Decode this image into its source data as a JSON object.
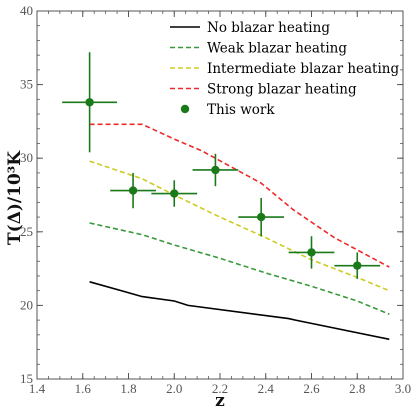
{
  "chart_data": {
    "type": "line",
    "xlabel": "z",
    "ylabel": "T(Δ)/10³K",
    "xlim": [
      1.4,
      3.0
    ],
    "ylim": [
      15,
      40
    ],
    "x_ticks": [
      "1.4",
      "1.6",
      "1.8",
      "2.0",
      "2.2",
      "2.4",
      "2.6",
      "2.8",
      "3.0"
    ],
    "y_ticks": [
      "15",
      "20",
      "25",
      "30",
      "35",
      "40"
    ],
    "legend_position": "top-right",
    "series": [
      {
        "name": "No blazar heating",
        "style": "solid",
        "color": "#000000",
        "x": [
          1.63,
          1.86,
          2.0,
          2.06,
          2.5,
          2.53,
          2.94
        ],
        "y": [
          21.6,
          20.6,
          20.3,
          20.0,
          19.1,
          19.0,
          17.7
        ]
      },
      {
        "name": "Weak blazar heating",
        "style": "dashed",
        "color": "#3a9a3a",
        "x": [
          1.63,
          1.86,
          2.0,
          2.2,
          2.4,
          2.6,
          2.8,
          2.94
        ],
        "y": [
          25.6,
          24.8,
          24.1,
          23.2,
          22.2,
          21.3,
          20.3,
          19.4
        ]
      },
      {
        "name": "Intermediate blazar heating",
        "style": "dashed",
        "color": "#cccc22",
        "x": [
          1.63,
          1.86,
          2.0,
          2.2,
          2.4,
          2.6,
          2.8,
          2.94
        ],
        "y": [
          29.8,
          28.6,
          27.5,
          26.0,
          24.6,
          23.1,
          21.9,
          21.0
        ]
      },
      {
        "name": "Strong blazar heating",
        "style": "dashed",
        "color": "#ee2a2a",
        "x": [
          1.63,
          1.86,
          2.0,
          2.12,
          2.25,
          2.38,
          2.52,
          2.7,
          2.94
        ],
        "y": [
          32.3,
          32.3,
          31.3,
          30.5,
          29.4,
          28.3,
          26.5,
          24.6,
          22.6
        ]
      }
    ],
    "points": {
      "name": "This work",
      "color": "#1a7a1a",
      "x": [
        1.63,
        1.82,
        2.0,
        2.18,
        2.38,
        2.6,
        2.8
      ],
      "y": [
        33.8,
        27.8,
        27.6,
        29.2,
        26.0,
        23.6,
        22.7
      ],
      "xerr": [
        0.12,
        0.1,
        0.1,
        0.1,
        0.1,
        0.1,
        0.1
      ],
      "yerr": [
        3.4,
        1.2,
        0.9,
        1.1,
        1.3,
        1.1,
        0.9
      ]
    }
  }
}
